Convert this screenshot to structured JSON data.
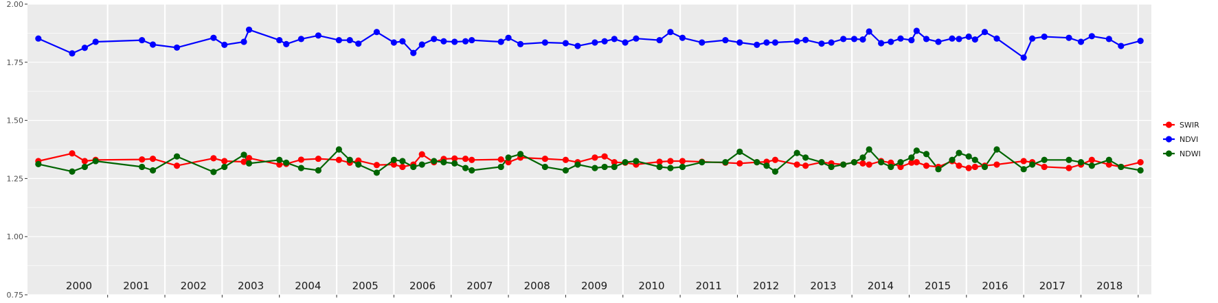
{
  "chart_data": {
    "type": "line",
    "title": "",
    "xlabel": "",
    "ylabel": "",
    "ylim": [
      0.75,
      2.0
    ],
    "xlim": [
      1999.6,
      2019.23
    ],
    "y_ticks": [
      "0.75",
      "1.00",
      "1.25",
      "1.50",
      "1.75",
      "2.00"
    ],
    "year_labels": [
      "2000",
      "2001",
      "2002",
      "2003",
      "2004",
      "2005",
      "2006",
      "2007",
      "2008",
      "2009",
      "2010",
      "2011",
      "2012",
      "2013",
      "2014",
      "2015",
      "2016",
      "2017",
      "2018"
    ],
    "grid": true,
    "legend_position": "right",
    "colors": {
      "SWIR": "#ff0000",
      "NDVI": "#0000ff",
      "NDWI": "#006400",
      "panel": "#ebebeb",
      "grid": "#ffffff"
    },
    "series": [
      {
        "name": "SWIR",
        "x": [
          1999.79,
          2000.38,
          2000.6,
          2000.79,
          2001.6,
          2001.79,
          2002.21,
          2002.85,
          2003.04,
          2003.38,
          2003.47,
          2004.0,
          2004.12,
          2004.38,
          2004.68,
          2005.04,
          2005.23,
          2005.38,
          2005.7,
          2006.0,
          2006.15,
          2006.34,
          2006.49,
          2006.7,
          2006.87,
          2007.06,
          2007.25,
          2007.36,
          2007.87,
          2008.0,
          2008.21,
          2008.64,
          2009.0,
          2009.21,
          2009.51,
          2009.68,
          2009.85,
          2010.04,
          2010.23,
          2010.64,
          2010.83,
          2011.04,
          2011.38,
          2011.79,
          2012.04,
          2012.34,
          2012.51,
          2012.66,
          2013.04,
          2013.19,
          2013.47,
          2013.64,
          2013.85,
          2014.04,
          2014.19,
          2014.3,
          2014.51,
          2014.68,
          2014.85,
          2015.04,
          2015.13,
          2015.3,
          2015.51,
          2015.75,
          2015.87,
          2016.04,
          2016.15,
          2016.32,
          2016.53,
          2017.0,
          2017.15,
          2017.36,
          2017.79,
          2018.0,
          2018.19,
          2018.49,
          2018.7,
          2019.04
        ],
        "values": [
          1.325,
          1.358,
          1.325,
          1.33,
          1.332,
          1.335,
          1.305,
          1.337,
          1.325,
          1.322,
          1.338,
          1.31,
          1.313,
          1.331,
          1.335,
          1.33,
          1.318,
          1.327,
          1.308,
          1.31,
          1.3,
          1.31,
          1.354,
          1.32,
          1.334,
          1.336,
          1.335,
          1.33,
          1.332,
          1.32,
          1.34,
          1.335,
          1.33,
          1.32,
          1.34,
          1.345,
          1.32,
          1.318,
          1.31,
          1.322,
          1.325,
          1.325,
          1.322,
          1.318,
          1.315,
          1.32,
          1.322,
          1.33,
          1.31,
          1.305,
          1.32,
          1.315,
          1.31,
          1.32,
          1.315,
          1.31,
          1.325,
          1.318,
          1.3,
          1.318,
          1.32,
          1.305,
          1.3,
          1.325,
          1.305,
          1.295,
          1.3,
          1.305,
          1.31,
          1.325,
          1.32,
          1.3,
          1.295,
          1.31,
          1.33,
          1.31,
          1.3,
          1.32
        ]
      },
      {
        "name": "NDVI",
        "x": [
          1999.79,
          2000.38,
          2000.6,
          2000.79,
          2001.6,
          2001.79,
          2002.21,
          2002.85,
          2003.04,
          2003.38,
          2003.47,
          2004.0,
          2004.12,
          2004.38,
          2004.68,
          2005.04,
          2005.23,
          2005.38,
          2005.7,
          2006.0,
          2006.15,
          2006.34,
          2006.49,
          2006.7,
          2006.87,
          2007.06,
          2007.25,
          2007.36,
          2007.87,
          2008.0,
          2008.21,
          2008.64,
          2009.0,
          2009.21,
          2009.51,
          2009.68,
          2009.85,
          2010.04,
          2010.23,
          2010.64,
          2010.83,
          2011.04,
          2011.38,
          2011.79,
          2012.04,
          2012.34,
          2012.51,
          2012.66,
          2013.04,
          2013.19,
          2013.47,
          2013.64,
          2013.85,
          2014.04,
          2014.19,
          2014.3,
          2014.51,
          2014.68,
          2014.85,
          2015.04,
          2015.13,
          2015.3,
          2015.51,
          2015.75,
          2015.87,
          2016.04,
          2016.15,
          2016.32,
          2016.53,
          2017.0,
          2017.15,
          2017.36,
          2017.79,
          2018.0,
          2018.19,
          2018.49,
          2018.7,
          2019.04
        ],
        "values": [
          1.852,
          1.788,
          1.812,
          1.838,
          1.845,
          1.826,
          1.813,
          1.855,
          1.825,
          1.838,
          1.89,
          1.845,
          1.828,
          1.85,
          1.865,
          1.845,
          1.845,
          1.83,
          1.88,
          1.835,
          1.84,
          1.79,
          1.826,
          1.85,
          1.84,
          1.838,
          1.84,
          1.845,
          1.838,
          1.855,
          1.828,
          1.835,
          1.832,
          1.82,
          1.835,
          1.84,
          1.85,
          1.835,
          1.852,
          1.845,
          1.88,
          1.855,
          1.835,
          1.845,
          1.835,
          1.825,
          1.835,
          1.835,
          1.84,
          1.846,
          1.83,
          1.835,
          1.85,
          1.85,
          1.848,
          1.882,
          1.832,
          1.838,
          1.852,
          1.845,
          1.885,
          1.85,
          1.838,
          1.852,
          1.85,
          1.86,
          1.848,
          1.88,
          1.852,
          1.77,
          1.852,
          1.86,
          1.855,
          1.838,
          1.862,
          1.85,
          1.82,
          1.842
        ]
      },
      {
        "name": "NDWI",
        "x": [
          1999.79,
          2000.38,
          2000.6,
          2000.79,
          2001.6,
          2001.79,
          2002.21,
          2002.85,
          2003.04,
          2003.38,
          2003.47,
          2004.0,
          2004.12,
          2004.38,
          2004.68,
          2005.04,
          2005.23,
          2005.38,
          2005.7,
          2006.0,
          2006.15,
          2006.34,
          2006.49,
          2006.7,
          2006.87,
          2007.06,
          2007.25,
          2007.36,
          2007.87,
          2008.0,
          2008.21,
          2008.64,
          2009.0,
          2009.21,
          2009.51,
          2009.68,
          2009.85,
          2010.04,
          2010.23,
          2010.64,
          2010.83,
          2011.04,
          2011.38,
          2011.79,
          2012.04,
          2012.34,
          2012.51,
          2012.66,
          2013.04,
          2013.19,
          2013.47,
          2013.64,
          2013.85,
          2014.04,
          2014.19,
          2014.3,
          2014.51,
          2014.68,
          2014.85,
          2015.04,
          2015.13,
          2015.3,
          2015.51,
          2015.75,
          2015.87,
          2016.04,
          2016.15,
          2016.32,
          2016.53,
          2017.0,
          2017.15,
          2017.36,
          2017.79,
          2018.0,
          2018.19,
          2018.49,
          2018.7,
          2019.04
        ],
        "values": [
          1.312,
          1.28,
          1.3,
          1.325,
          1.3,
          1.285,
          1.345,
          1.278,
          1.3,
          1.352,
          1.315,
          1.33,
          1.318,
          1.295,
          1.285,
          1.375,
          1.33,
          1.31,
          1.275,
          1.33,
          1.325,
          1.3,
          1.31,
          1.325,
          1.32,
          1.315,
          1.295,
          1.285,
          1.3,
          1.34,
          1.355,
          1.3,
          1.285,
          1.31,
          1.295,
          1.3,
          1.3,
          1.32,
          1.325,
          1.3,
          1.295,
          1.3,
          1.32,
          1.32,
          1.365,
          1.32,
          1.305,
          1.28,
          1.36,
          1.34,
          1.32,
          1.3,
          1.31,
          1.32,
          1.34,
          1.375,
          1.32,
          1.3,
          1.32,
          1.34,
          1.37,
          1.355,
          1.29,
          1.33,
          1.36,
          1.345,
          1.33,
          1.3,
          1.375,
          1.29,
          1.31,
          1.33,
          1.33,
          1.32,
          1.305,
          1.33,
          1.3,
          1.285
        ]
      }
    ]
  }
}
